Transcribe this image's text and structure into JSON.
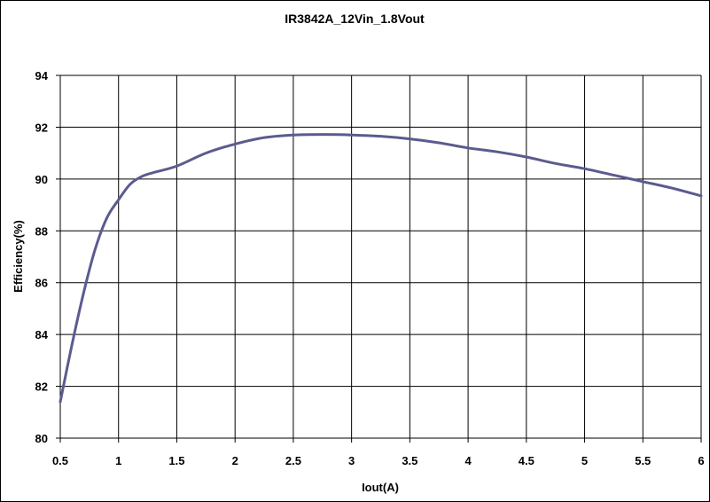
{
  "chart_data": {
    "type": "line",
    "title": "IR3842A_12Vin_1.8Vout",
    "xlabel": "Iout(A)",
    "ylabel": "Efficiency(%)",
    "xlim": [
      0.5,
      6
    ],
    "ylim": [
      80,
      94
    ],
    "x_ticks": [
      "0.5",
      "1",
      "1.5",
      "2",
      "2.5",
      "3",
      "3.5",
      "4",
      "4.5",
      "5",
      "5.5",
      "6"
    ],
    "y_ticks": [
      "80",
      "82",
      "84",
      "86",
      "88",
      "90",
      "92",
      "94"
    ],
    "grid": true,
    "series": [
      {
        "color": "#5b5b8f",
        "x": [
          0.5,
          0.6,
          0.7,
          0.8,
          0.9,
          1.0,
          1.1,
          1.2,
          1.3,
          1.5,
          1.75,
          2.0,
          2.25,
          2.5,
          2.75,
          3.0,
          3.25,
          3.5,
          3.75,
          4.0,
          4.25,
          4.5,
          4.75,
          5.0,
          5.25,
          5.5,
          5.75,
          6.0
        ],
        "y": [
          81.4,
          83.6,
          85.6,
          87.3,
          88.5,
          89.2,
          89.8,
          90.1,
          90.25,
          90.5,
          91.0,
          91.35,
          91.6,
          91.7,
          91.72,
          91.7,
          91.65,
          91.55,
          91.4,
          91.2,
          91.05,
          90.85,
          90.6,
          90.4,
          90.15,
          89.9,
          89.65,
          89.35
        ]
      }
    ]
  }
}
